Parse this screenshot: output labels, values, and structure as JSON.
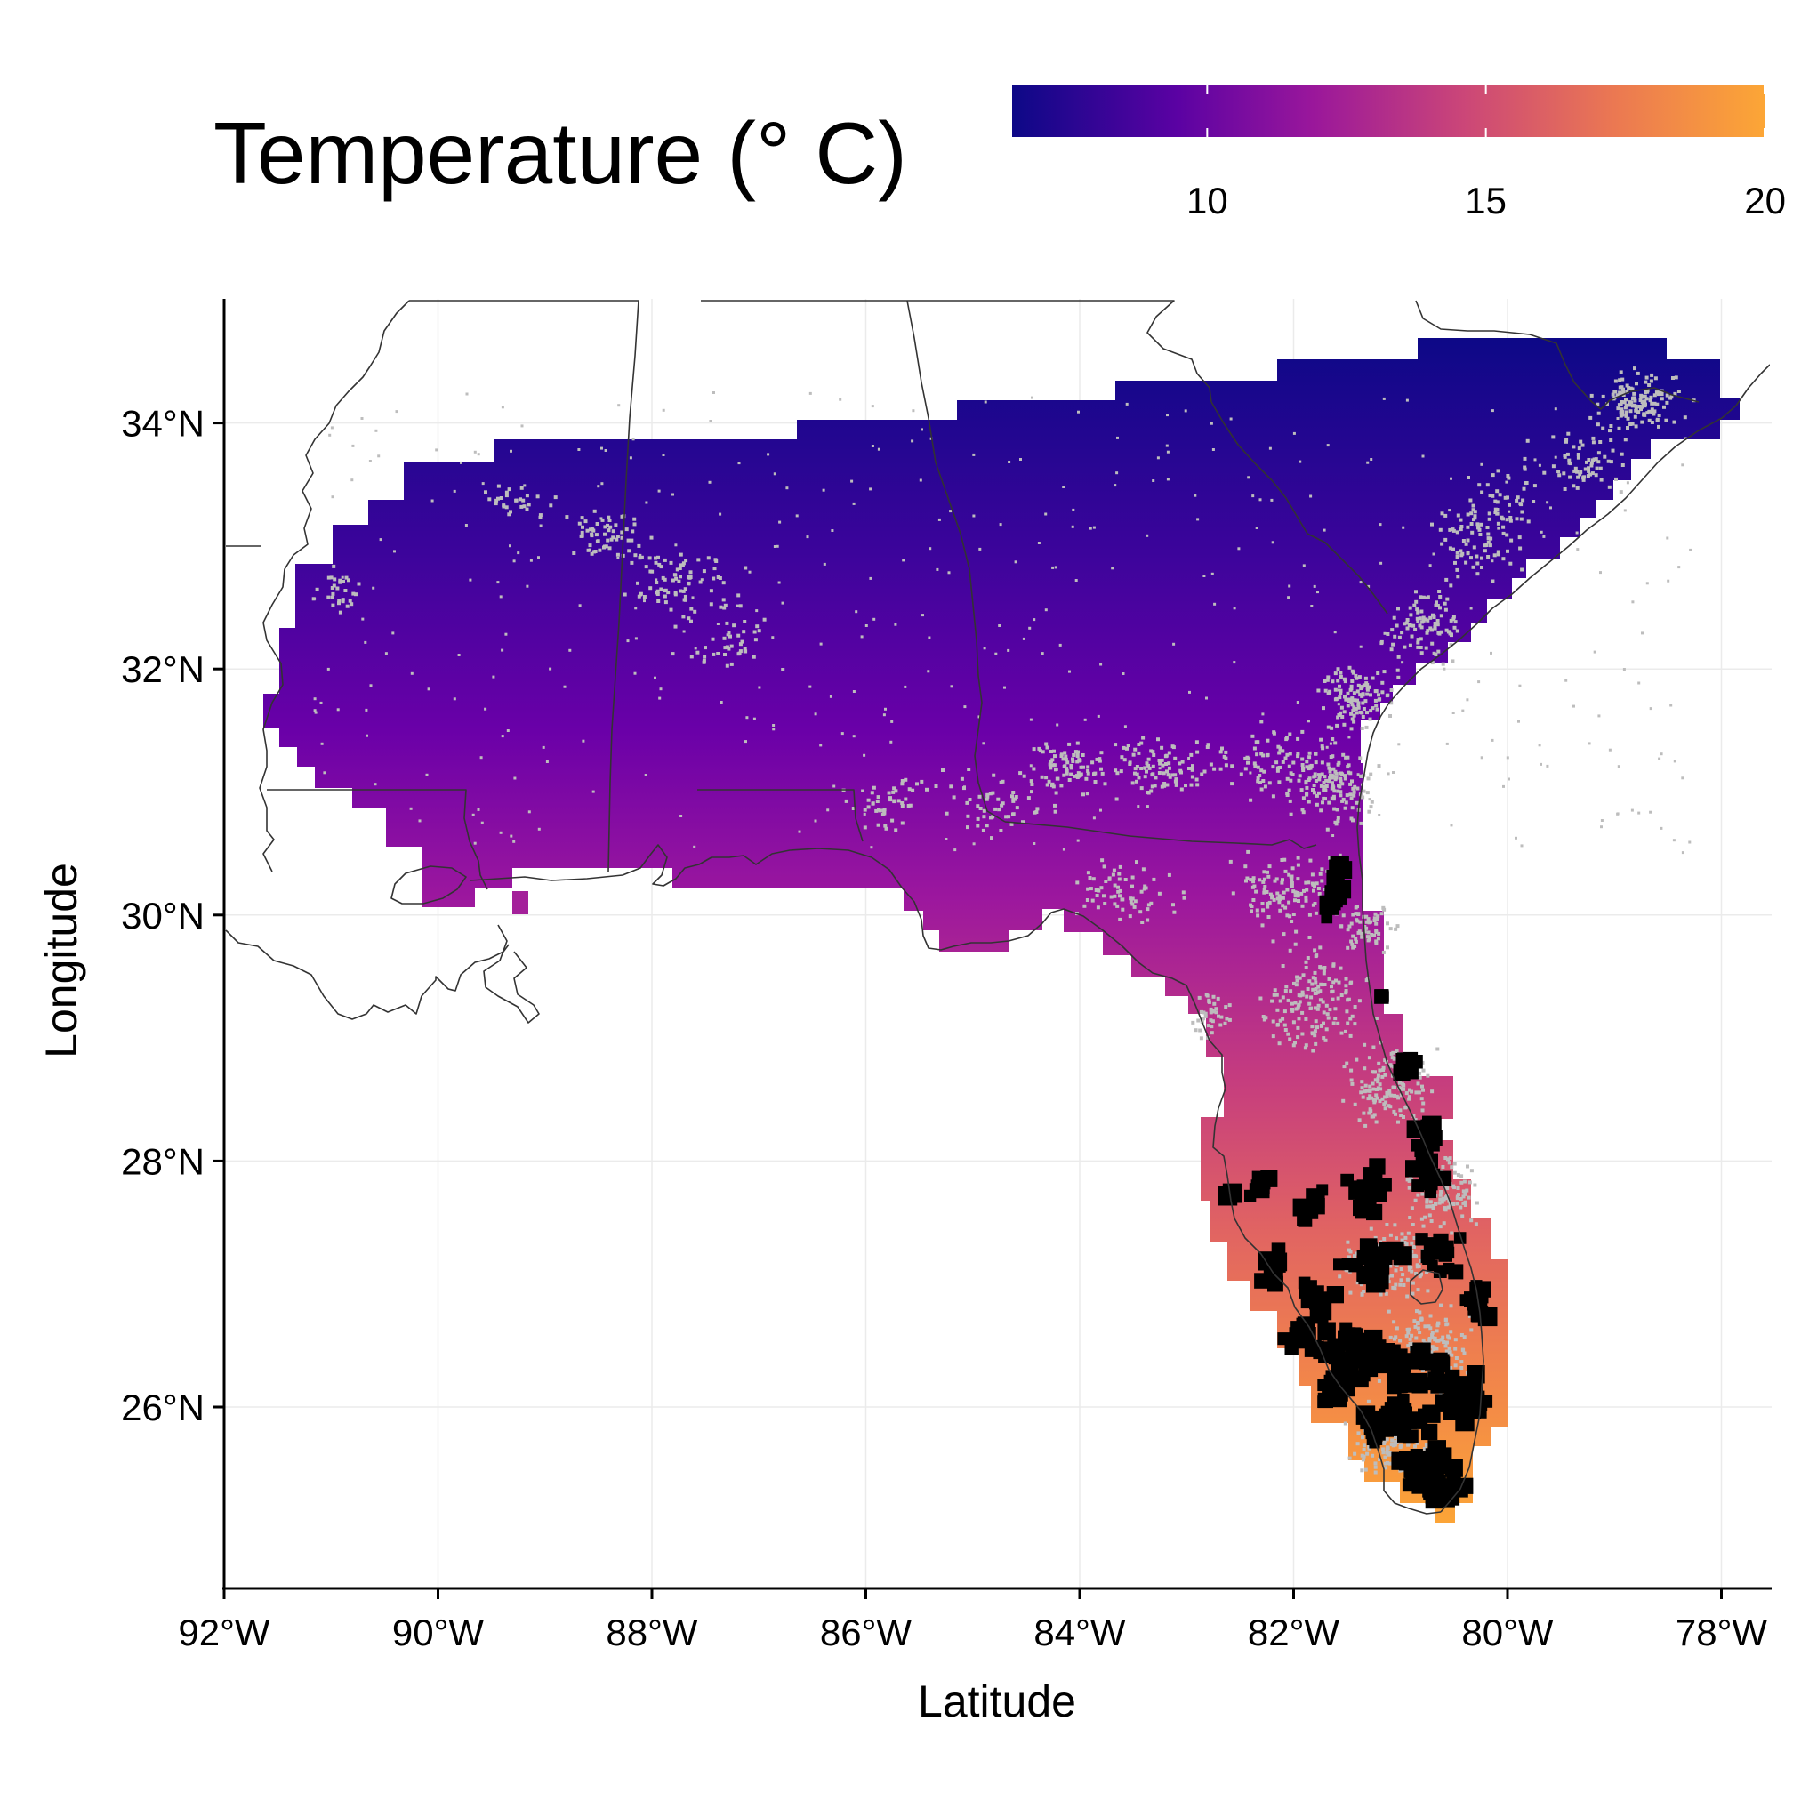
{
  "legend": {
    "title": "Temperature (° C)",
    "scale_min": 6.5,
    "scale_max": 20,
    "ticks": [
      "10",
      "15",
      "20"
    ],
    "tick_values": [
      10,
      15,
      20
    ],
    "colors": [
      "#0d0887",
      "#5b02a3",
      "#9a179b",
      "#cb4678",
      "#eb7852",
      "#fbb32f"
    ]
  },
  "axes": {
    "xlabel": "Latitude",
    "ylabel": "Longitude",
    "x_ticks": [
      "92°W",
      "90°W",
      "88°W",
      "86°W",
      "84°W",
      "82°W",
      "80°W",
      "78°W"
    ],
    "x_tick_values": [
      -92,
      -90,
      -88,
      -86,
      -84,
      -82,
      -80,
      -78
    ],
    "y_ticks": [
      "26°N",
      "28°N",
      "30°N",
      "32°N",
      "34°N"
    ],
    "y_tick_values": [
      26,
      28,
      30,
      32,
      34
    ],
    "xlim": [
      -92,
      -77.5
    ],
    "ylim": [
      24.5,
      35
    ],
    "grid": true
  },
  "layers": {
    "temperature_raster": "#page-temperature",
    "gray_points": "#bdbdbd",
    "black_points": "#000000",
    "state_borders": "#333333"
  }
}
